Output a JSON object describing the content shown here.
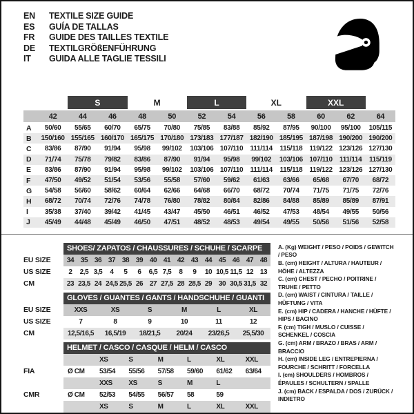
{
  "header": {
    "languages": [
      {
        "code": "EN",
        "text": "TEXTILE SIZE GUIDE"
      },
      {
        "code": "ES",
        "text": "GUÍA DE TALLAS"
      },
      {
        "code": "FR",
        "text": "GUIDE DES TAILLES TEXTILE"
      },
      {
        "code": "DE",
        "text": "TEXTILGRÖßENFÜHRUNG"
      },
      {
        "code": "IT",
        "text": "GUIDA ALLE TAGLIE TESSILI"
      }
    ],
    "helmet_icon": "racing-helmet-icon"
  },
  "textile_table": {
    "size_groups": [
      {
        "label": "S",
        "dark": true
      },
      {
        "label": "M",
        "dark": false
      },
      {
        "label": "L",
        "dark": true
      },
      {
        "label": "XL",
        "dark": false
      },
      {
        "label": "XXL",
        "dark": true
      }
    ],
    "columns": [
      "42",
      "44",
      "46",
      "48",
      "50",
      "52",
      "54",
      "56",
      "58",
      "60",
      "62",
      "64"
    ],
    "rows": [
      {
        "label": "A",
        "values": [
          "50/60",
          "55/65",
          "60/70",
          "65/75",
          "70/80",
          "75/85",
          "83/88",
          "85/92",
          "87/95",
          "90/100",
          "95/100",
          "105/115"
        ]
      },
      {
        "label": "B",
        "values": [
          "150/160",
          "155/165",
          "160/170",
          "165/175",
          "170/180",
          "173/183",
          "177/187",
          "182/190",
          "185/195",
          "187/198",
          "190/200",
          "190/200"
        ]
      },
      {
        "label": "C",
        "values": [
          "83/86",
          "87/90",
          "91/94",
          "95/98",
          "99/102",
          "103/106",
          "107/110",
          "111/114",
          "115/118",
          "119/122",
          "123/126",
          "127/130"
        ]
      },
      {
        "label": "D",
        "values": [
          "71/74",
          "75/78",
          "79/82",
          "83/86",
          "87/90",
          "91/94",
          "95/98",
          "99/102",
          "103/106",
          "107/110",
          "111/114",
          "115/119"
        ]
      },
      {
        "label": "E",
        "values": [
          "83/86",
          "87/90",
          "91/94",
          "95/98",
          "99/102",
          "103/106",
          "107/110",
          "111/114",
          "115/118",
          "119/122",
          "123/126",
          "127/130"
        ]
      },
      {
        "label": "F",
        "values": [
          "47/50",
          "49/52",
          "51/54",
          "53/56",
          "55/58",
          "57/60",
          "59/62",
          "61/63",
          "63/66",
          "65/68",
          "67/70",
          "68/72"
        ]
      },
      {
        "label": "G",
        "values": [
          "54/58",
          "56/60",
          "58/62",
          "60/64",
          "62/66",
          "64/68",
          "66/70",
          "68/72",
          "70/74",
          "71/75",
          "71/75",
          "72/76"
        ]
      },
      {
        "label": "H",
        "values": [
          "68/72",
          "70/74",
          "72/76",
          "74/78",
          "76/80",
          "78/82",
          "80/84",
          "82/86",
          "84/88",
          "85/89",
          "85/89",
          "87/91"
        ]
      },
      {
        "label": "I",
        "values": [
          "35/38",
          "37/40",
          "39/42",
          "41/45",
          "43/47",
          "45/50",
          "46/51",
          "46/52",
          "47/53",
          "48/54",
          "49/55",
          "50/56"
        ]
      },
      {
        "label": "J",
        "values": [
          "45/49",
          "44/48",
          "45/49",
          "46/50",
          "47/51",
          "48/52",
          "48/53",
          "49/54",
          "49/55",
          "50/56",
          "51/56",
          "52/58"
        ]
      }
    ]
  },
  "shoes_table": {
    "title": "SHOES/ ZAPATOS / CHAUSSURES / SCHUHE / SCARPE",
    "rows": [
      {
        "label": "EU SIZE",
        "shade": "medium",
        "values": [
          "34",
          "35",
          "36",
          "37",
          "38",
          "39",
          "40",
          "41",
          "42",
          "43",
          "44",
          "45",
          "46",
          "47",
          "48"
        ]
      },
      {
        "label": "US SIZE",
        "shade": "none",
        "values": [
          "2",
          "2,5",
          "3,5",
          "4",
          "5",
          "6",
          "6,5",
          "7,5",
          "8",
          "9",
          "10",
          "10,5",
          "11,5",
          "12",
          "13"
        ]
      },
      {
        "label": "CM",
        "shade": "light",
        "values": [
          "23",
          "23,5",
          "24",
          "24,5",
          "25,5",
          "26",
          "27",
          "27,5",
          "28",
          "28,5",
          "29",
          "30",
          "30,5",
          "31,5",
          "32"
        ]
      }
    ]
  },
  "gloves_table": {
    "title": "GLOVES / GUANTES / GANTS / HANDSCHUHE / GUANTI",
    "rows": [
      {
        "label": "EU SIZE",
        "shade": "medium",
        "values": [
          "XXS",
          "XS",
          "S",
          "M",
          "L",
          "XL"
        ]
      },
      {
        "label": "US SIZE",
        "shade": "none",
        "values": [
          "7",
          "8",
          "9",
          "10",
          "11",
          "12"
        ]
      },
      {
        "label": "CM",
        "shade": "light",
        "values": [
          "12,5/16,5",
          "16,5/19",
          "18/21,5",
          "20/24",
          "23/26,5",
          "25,5/30"
        ]
      }
    ]
  },
  "helmet_table": {
    "title": "HELMET / CASCO / CASQUE / HELM / CASCO",
    "rows": [
      {
        "label": "",
        "unit": "",
        "shade": "soft",
        "values": [
          "XS",
          "S",
          "M",
          "L",
          "XL",
          "XXL"
        ]
      },
      {
        "label": "FIA",
        "unit": "Ø CM",
        "shade": "none",
        "values": [
          "53/54",
          "55/56",
          "57/58",
          "59/60",
          "61/62",
          "63/64"
        ]
      },
      {
        "label": "",
        "unit": "",
        "shade": "soft",
        "values": [
          "XXS",
          "XS",
          "S",
          "M",
          "L",
          ""
        ]
      },
      {
        "label": "CMR",
        "unit": "Ø CM",
        "shade": "none",
        "values": [
          "52/53",
          "54/55",
          "56/57",
          "58",
          "59",
          ""
        ]
      },
      {
        "label": "",
        "unit": "",
        "shade": "soft",
        "values": [
          "XS",
          "S",
          "M",
          "L",
          "XL",
          "XXL"
        ]
      },
      {
        "label": "ECE",
        "unit": "Ø CM",
        "shade": "none",
        "values": [
          "53",
          "55/56",
          "57/58",
          "59",
          "60",
          "61"
        ]
      }
    ]
  },
  "legend": {
    "items": [
      "A. (Kg) WEIGHT / PESO / POIDS / GEWITCH / PESO",
      "B. (cm) HEIGHT / ALTURA / HAUTEUR / HÖHE / ALTEZZA",
      "C. (cm) CHEST / PECHO / POITRINE / TRUHE / PETTO",
      "D. (cm) WAIST / CINTURA / TAILLE / HÜFTUNG / VITA",
      "E. (cm) HIP / CADERA / HANCHE / HÜFTE / HIPS / BACINO",
      "F. (cm) TIGH / MUSLO / CUISSE / SCHENKEL / COSCIA",
      "G. (cm) ARM / BRAZO / BRAS / ARM / BRACCIO",
      "H. (cm) INSIDE LEG / ENTREPIERNA / FOURCHE / SCHRITT / FORCELLA",
      "I. (cm) SHOULDERS / HOMBROS / ÉPAULES / SCHULTERN / SPALLE",
      "J. (cm) BACK / ESPALDA / DOS / ZURÜCK / INDIETRO"
    ]
  },
  "colors": {
    "header_bar_dark": "#3f3f3f",
    "row_medium_gray": "#c8c8c8",
    "row_soft_gray": "#d4d4d4",
    "row_light_gray": "#e3e3e3",
    "text": "#1c1c1c",
    "frame_border": "#141414"
  }
}
